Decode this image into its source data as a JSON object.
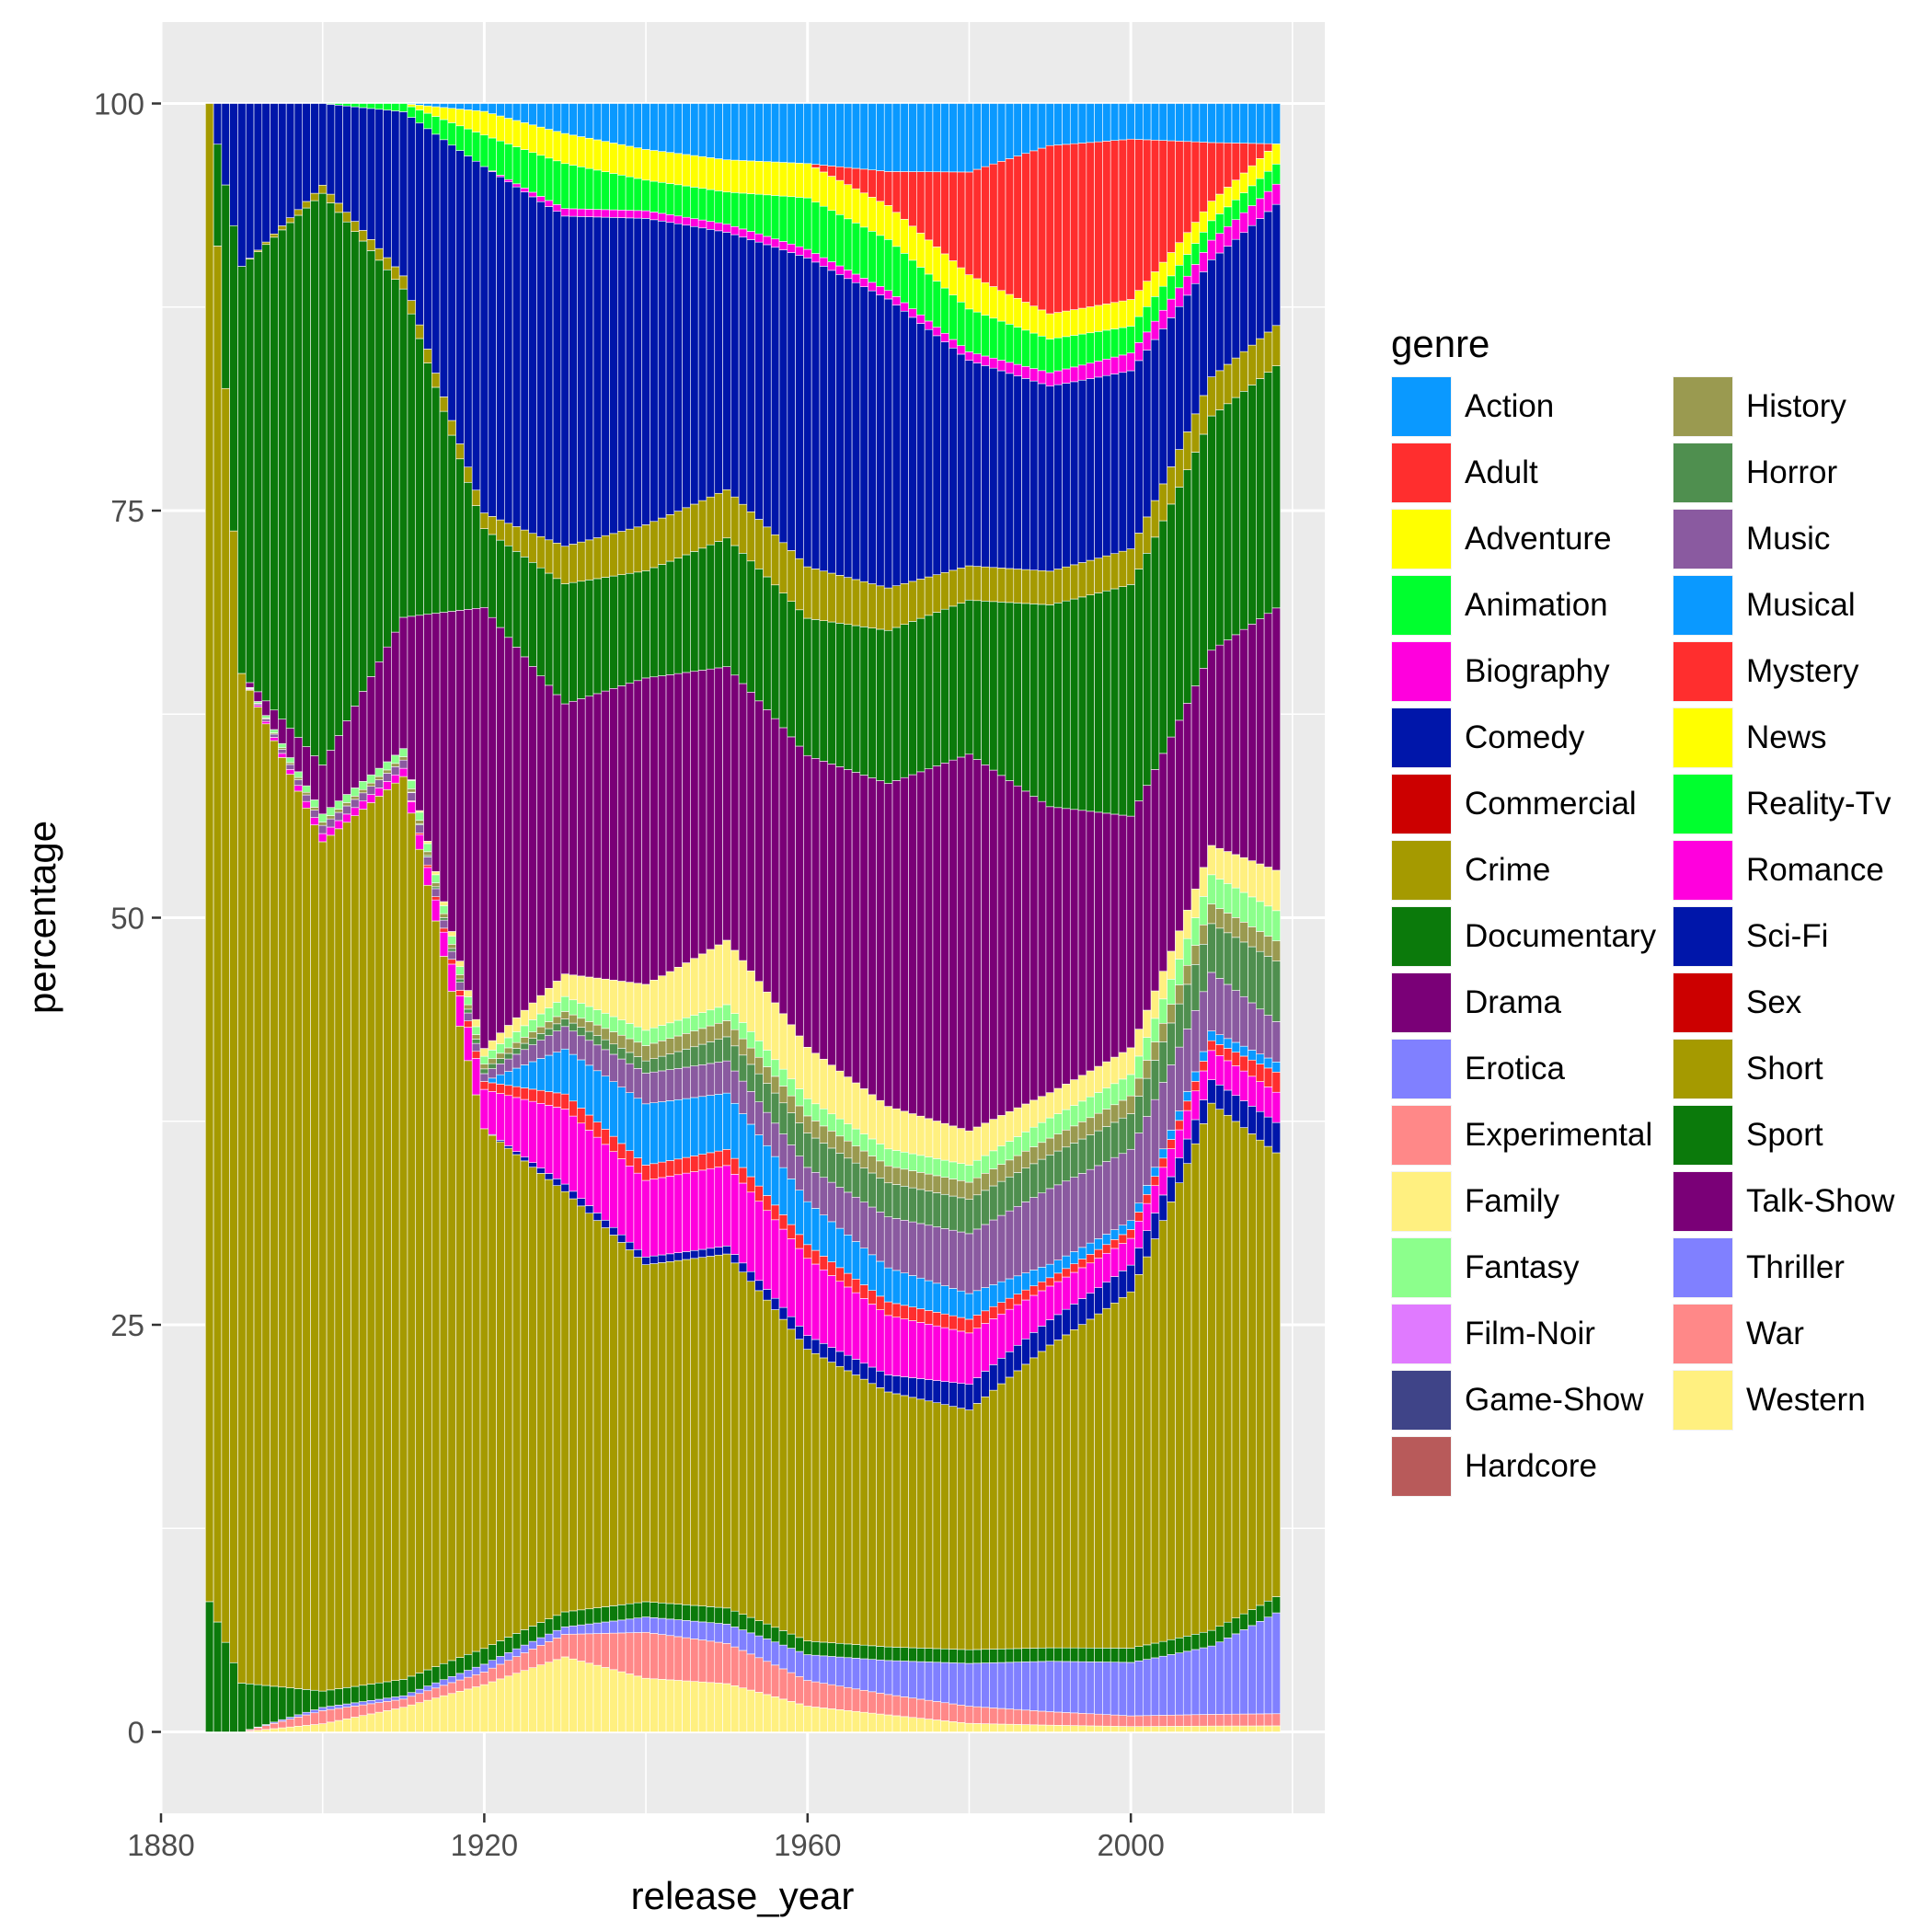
{
  "chart_data": {
    "type": "area",
    "stacking": "percent",
    "xlabel": "release_year",
    "ylabel": "percentage",
    "xlim": [
      1880,
      2024
    ],
    "ylim": [
      -5,
      105
    ],
    "x_ticks": [
      1880,
      1920,
      1960,
      2000
    ],
    "y_ticks": [
      0,
      25,
      50,
      75,
      100
    ],
    "grid": true,
    "legend": {
      "title": "genre",
      "placement": "right",
      "columns": 2
    },
    "genres": [
      {
        "name": "Action",
        "color": "#0a99ff"
      },
      {
        "name": "Adult",
        "color": "#ff2e2e"
      },
      {
        "name": "Adventure",
        "color": "#ffff00"
      },
      {
        "name": "Animation",
        "color": "#00ff2e"
      },
      {
        "name": "Biography",
        "color": "#ff00dd"
      },
      {
        "name": "Comedy",
        "color": "#0016aa"
      },
      {
        "name": "Commercial",
        "color": "#cc0000"
      },
      {
        "name": "Crime",
        "color": "#a59a00"
      },
      {
        "name": "Documentary",
        "color": "#0b7a0b"
      },
      {
        "name": "Drama",
        "color": "#7a0077"
      },
      {
        "name": "Erotica",
        "color": "#8080ff"
      },
      {
        "name": "Experimental",
        "color": "#ff8888"
      },
      {
        "name": "Family",
        "color": "#fff080"
      },
      {
        "name": "Fantasy",
        "color": "#8cff8c"
      },
      {
        "name": "Film-Noir",
        "color": "#e07aff"
      },
      {
        "name": "Game-Show",
        "color": "#3f4488"
      },
      {
        "name": "Hardcore",
        "color": "#b85a5a"
      },
      {
        "name": "History",
        "color": "#9a9a50"
      },
      {
        "name": "Horror",
        "color": "#4f8f4f"
      },
      {
        "name": "Music",
        "color": "#8a5aa0"
      },
      {
        "name": "Musical",
        "color": "#0a99ff"
      },
      {
        "name": "Mystery",
        "color": "#ff2e2e"
      },
      {
        "name": "News",
        "color": "#ffff00"
      },
      {
        "name": "Reality-Tv",
        "color": "#00ff2e"
      },
      {
        "name": "Romance",
        "color": "#ff00dd"
      },
      {
        "name": "Sci-Fi",
        "color": "#0016aa"
      },
      {
        "name": "Sex",
        "color": "#cc0000"
      },
      {
        "name": "Short",
        "color": "#a59a00"
      },
      {
        "name": "Sport",
        "color": "#0b7a0b"
      },
      {
        "name": "Talk-Show",
        "color": "#7a0077"
      },
      {
        "name": "Thriller",
        "color": "#8080ff"
      },
      {
        "name": "War",
        "color": "#ff8888"
      },
      {
        "name": "Western",
        "color": "#fff080"
      }
    ],
    "stack_order_bottom_to_top": [
      "Western",
      "War",
      "Thriller",
      "Sport",
      "Short",
      "Sci-Fi",
      "Romance",
      "Mystery",
      "Musical",
      "Music",
      "Horror",
      "History",
      "Fantasy",
      "Family",
      "Drama",
      "Documentary",
      "Crime",
      "Comedy",
      "Biography",
      "Animation",
      "Adventure",
      "Adult",
      "Action"
    ],
    "keyframes_years": [
      1886,
      1890,
      1900,
      1910,
      1920,
      1930,
      1940,
      1950,
      1960,
      1970,
      1980,
      1990,
      2000,
      2010,
      2018
    ],
    "keyframe_shares": {
      "Western": [
        0,
        0,
        0.5,
        1.5,
        3,
        5,
        3.5,
        3,
        1.5,
        1,
        0.5,
        0.4,
        0.3,
        0.3,
        0.3
      ],
      "War": [
        0,
        0,
        0.8,
        0.5,
        0.8,
        1.5,
        3,
        2.5,
        1.5,
        1.2,
        1,
        0.8,
        0.6,
        0.6,
        0.6
      ],
      "Thriller": [
        0,
        0,
        0.2,
        0.2,
        0.5,
        0.5,
        1,
        1.2,
        1.5,
        2,
        2.5,
        3,
        3,
        3.5,
        5
      ],
      "Sport": [
        8,
        3,
        1,
        1,
        1,
        1,
        1,
        1,
        0.8,
        0.8,
        0.8,
        0.8,
        0.8,
        0.8,
        0.8
      ],
      "Short": [
        92,
        62,
        52,
        55,
        33,
        28,
        22,
        22,
        17,
        15,
        14,
        18,
        20,
        27,
        22
      ],
      "Sci-Fi": [
        0,
        0,
        0,
        0,
        0,
        0.5,
        0.5,
        0.5,
        0.8,
        1,
        1.5,
        1.5,
        1.5,
        1.2,
        1.5
      ],
      "Romance": [
        0,
        0,
        0.5,
        0.5,
        2.5,
        5,
        5,
        5,
        4.5,
        3.5,
        3,
        2,
        1.5,
        1.5,
        1.5
      ],
      "Mystery": [
        0,
        0,
        0,
        0,
        0.5,
        1,
        1,
        1,
        0.8,
        0.8,
        0.8,
        0.5,
        0.5,
        0.5,
        1
      ],
      "Musical": [
        0,
        0,
        0,
        0,
        0,
        3,
        4,
        3.5,
        2.5,
        2,
        1.5,
        0.8,
        0.5,
        0.5,
        0.5
      ],
      "Music": [
        0,
        0,
        0.5,
        0.5,
        0.5,
        1.5,
        2,
        2,
        2,
        3,
        3.5,
        4.5,
        4,
        3,
        2
      ],
      "Horror": [
        0,
        0,
        0,
        0,
        0.3,
        0.5,
        0.8,
        1.5,
        2,
        2,
        2,
        2,
        2,
        2.5,
        3
      ],
      "History": [
        0,
        0,
        0.2,
        0.2,
        0.3,
        0.5,
        1,
        1,
        1,
        1,
        1,
        1,
        1,
        1,
        1
      ],
      "Fantasy": [
        0,
        0,
        0.5,
        0.5,
        0.5,
        1,
        1,
        1,
        1,
        1,
        1,
        1.2,
        1.2,
        1.5,
        1.5
      ],
      "Family": [
        0,
        0,
        0,
        0,
        0.5,
        1.5,
        3,
        4,
        3,
        2.5,
        2,
        1.5,
        1.5,
        1.5,
        2
      ],
      "Drama": [
        0,
        0,
        3,
        8,
        28,
        18,
        20,
        17,
        17,
        19,
        22,
        17,
        13,
        10,
        13
      ],
      "Documentary": [
        0,
        25,
        35,
        20,
        5,
        8,
        7,
        8,
        8,
        9,
        9,
        12,
        13,
        12,
        12
      ],
      "Crime": [
        0,
        0,
        0.5,
        0.8,
        1,
        2.5,
        3,
        3,
        3,
        2.5,
        2,
        2,
        2,
        2,
        2
      ],
      "Comedy": [
        0,
        10,
        5,
        10,
        22,
        22,
        20,
        16,
        18,
        17,
        12,
        11,
        10,
        6,
        6
      ],
      "Biography": [
        0,
        0,
        0,
        0,
        0,
        0.5,
        0.5,
        0.5,
        0.5,
        0.5,
        0.5,
        0.8,
        1,
        1,
        1
      ],
      "Animation": [
        0,
        0,
        0,
        0.5,
        2,
        3,
        2,
        2,
        3,
        3,
        2.5,
        2,
        1.5,
        1,
        1
      ],
      "Adventure": [
        0,
        0,
        0,
        0,
        1.5,
        2,
        2,
        2,
        2,
        2,
        2,
        1.5,
        1.5,
        1,
        1
      ],
      "Adult": [
        0,
        0,
        0,
        0,
        0,
        0,
        0,
        0,
        0,
        2,
        6,
        10,
        9,
        3,
        0
      ],
      "Action": [
        0,
        0,
        0,
        0,
        0.5,
        2,
        3,
        3.5,
        3.5,
        4,
        4,
        2.5,
        2,
        2,
        2
      ]
    }
  }
}
